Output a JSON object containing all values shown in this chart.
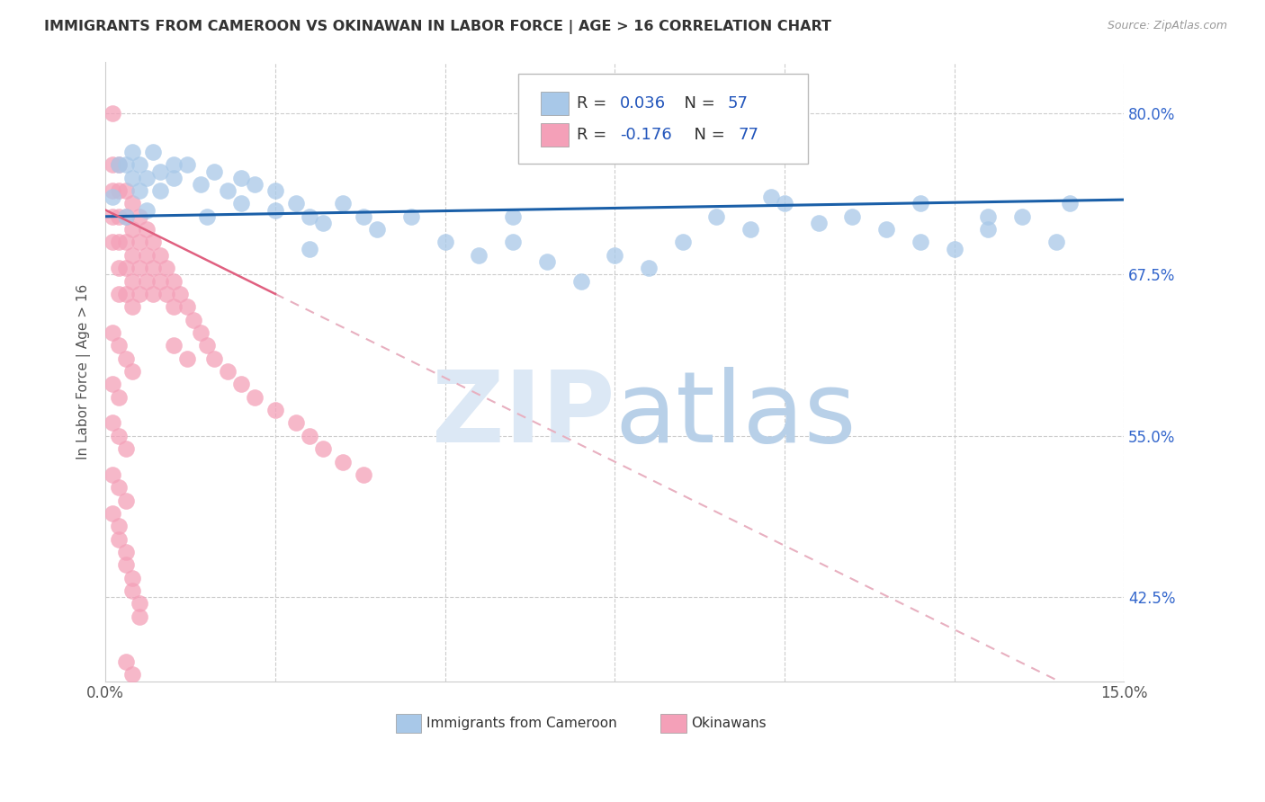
{
  "title": "IMMIGRANTS FROM CAMEROON VS OKINAWAN IN LABOR FORCE | AGE > 16 CORRELATION CHART",
  "source": "Source: ZipAtlas.com",
  "ylabel": "In Labor Force | Age > 16",
  "xlim": [
    0.0,
    0.15
  ],
  "ylim": [
    0.36,
    0.84
  ],
  "yticks": [
    0.425,
    0.55,
    0.675,
    0.8
  ],
  "ytick_labels": [
    "42.5%",
    "55.0%",
    "67.5%",
    "80.0%"
  ],
  "xticks": [
    0.0,
    0.025,
    0.05,
    0.075,
    0.1,
    0.125,
    0.15
  ],
  "xtick_labels": [
    "0.0%",
    "",
    "",
    "",
    "",
    "",
    "15.0%"
  ],
  "cameroon_R": 0.036,
  "cameroon_N": 57,
  "okinawan_R": -0.176,
  "okinawan_N": 77,
  "blue_color": "#a8c8e8",
  "pink_color": "#f4a0b8",
  "blue_line_color": "#1a5fa8",
  "pink_line_color": "#e06080",
  "pink_dash_color": "#e8b0c0",
  "watermark_color": "#dce8f5",
  "background_color": "#ffffff",
  "cameroon_x": [
    0.001,
    0.002,
    0.003,
    0.004,
    0.005,
    0.006,
    0.007,
    0.008,
    0.01,
    0.012,
    0.014,
    0.016,
    0.018,
    0.02,
    0.022,
    0.025,
    0.028,
    0.03,
    0.032,
    0.035,
    0.038,
    0.04,
    0.045,
    0.05,
    0.055,
    0.06,
    0.065,
    0.07,
    0.075,
    0.08,
    0.085,
    0.09,
    0.095,
    0.1,
    0.105,
    0.11,
    0.115,
    0.12,
    0.125,
    0.13,
    0.135,
    0.14,
    0.003,
    0.004,
    0.005,
    0.006,
    0.008,
    0.01,
    0.015,
    0.02,
    0.025,
    0.03,
    0.06,
    0.098,
    0.12,
    0.13,
    0.142
  ],
  "cameroon_y": [
    0.735,
    0.76,
    0.72,
    0.75,
    0.74,
    0.725,
    0.77,
    0.755,
    0.75,
    0.76,
    0.745,
    0.755,
    0.74,
    0.75,
    0.745,
    0.74,
    0.73,
    0.72,
    0.715,
    0.73,
    0.72,
    0.71,
    0.72,
    0.7,
    0.69,
    0.7,
    0.685,
    0.67,
    0.69,
    0.68,
    0.7,
    0.72,
    0.71,
    0.73,
    0.715,
    0.72,
    0.71,
    0.7,
    0.695,
    0.71,
    0.72,
    0.7,
    0.76,
    0.77,
    0.76,
    0.75,
    0.74,
    0.76,
    0.72,
    0.73,
    0.725,
    0.695,
    0.72,
    0.735,
    0.73,
    0.72,
    0.73
  ],
  "okinawan_x": [
    0.001,
    0.001,
    0.001,
    0.001,
    0.001,
    0.002,
    0.002,
    0.002,
    0.002,
    0.002,
    0.002,
    0.003,
    0.003,
    0.003,
    0.003,
    0.003,
    0.004,
    0.004,
    0.004,
    0.004,
    0.004,
    0.005,
    0.005,
    0.005,
    0.005,
    0.006,
    0.006,
    0.006,
    0.007,
    0.007,
    0.007,
    0.008,
    0.008,
    0.009,
    0.009,
    0.01,
    0.01,
    0.011,
    0.012,
    0.013,
    0.014,
    0.015,
    0.016,
    0.018,
    0.02,
    0.022,
    0.025,
    0.028,
    0.03,
    0.032,
    0.035,
    0.038,
    0.001,
    0.002,
    0.003,
    0.004,
    0.001,
    0.002,
    0.001,
    0.002,
    0.003,
    0.001,
    0.002,
    0.003,
    0.001,
    0.002,
    0.002,
    0.003,
    0.003,
    0.004,
    0.004,
    0.005,
    0.005,
    0.003,
    0.004,
    0.01,
    0.012
  ],
  "okinawan_y": [
    0.8,
    0.76,
    0.74,
    0.72,
    0.7,
    0.76,
    0.74,
    0.72,
    0.7,
    0.68,
    0.66,
    0.74,
    0.72,
    0.7,
    0.68,
    0.66,
    0.73,
    0.71,
    0.69,
    0.67,
    0.65,
    0.72,
    0.7,
    0.68,
    0.66,
    0.71,
    0.69,
    0.67,
    0.7,
    0.68,
    0.66,
    0.69,
    0.67,
    0.68,
    0.66,
    0.67,
    0.65,
    0.66,
    0.65,
    0.64,
    0.63,
    0.62,
    0.61,
    0.6,
    0.59,
    0.58,
    0.57,
    0.56,
    0.55,
    0.54,
    0.53,
    0.52,
    0.63,
    0.62,
    0.61,
    0.6,
    0.59,
    0.58,
    0.56,
    0.55,
    0.54,
    0.52,
    0.51,
    0.5,
    0.49,
    0.48,
    0.47,
    0.46,
    0.45,
    0.44,
    0.43,
    0.42,
    0.41,
    0.375,
    0.365,
    0.62,
    0.61
  ]
}
